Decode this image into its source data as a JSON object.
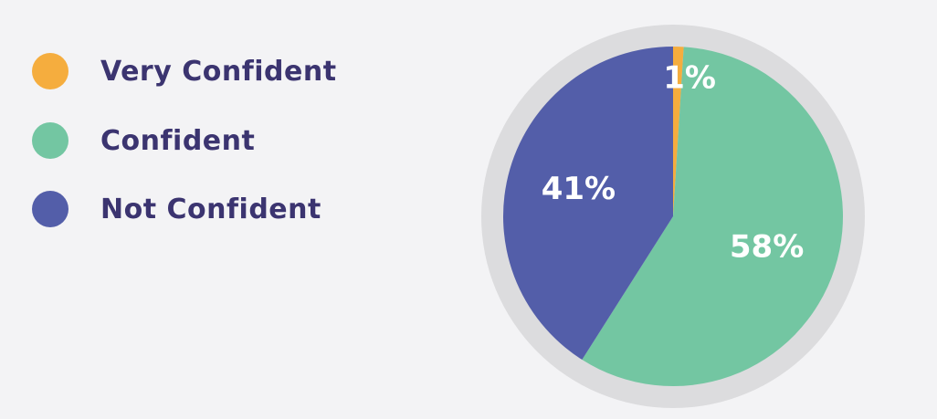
{
  "chart_data": {
    "type": "pie",
    "categories": [
      "Very Confident",
      "Confident",
      "Not Confident"
    ],
    "values": [
      1,
      58,
      41
    ],
    "data_labels": [
      "1%",
      "58%",
      "41%"
    ],
    "colors": [
      "#f5ad3e",
      "#73c6a2",
      "#535ea9"
    ],
    "title": "",
    "legend_position": "left",
    "ring_color": "#dcdcde"
  }
}
